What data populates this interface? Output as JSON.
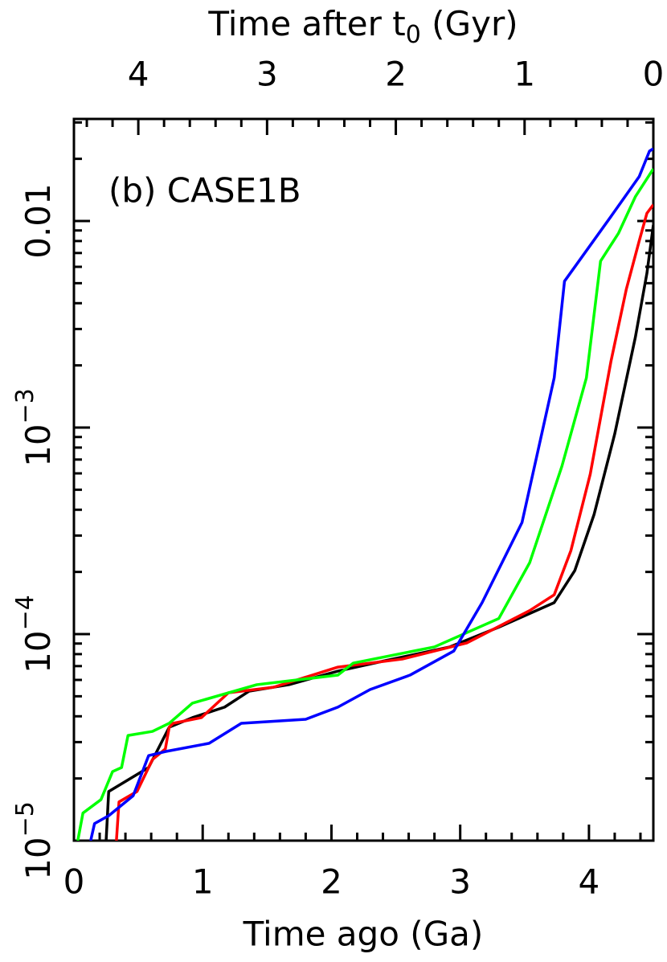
{
  "chart_data": {
    "type": "line",
    "annotation": "(b) CASE1B",
    "x_label": "Time ago (Ga)",
    "x2_label": [
      "Time after t",
      "0",
      " (Gyr)"
    ],
    "xlim": [
      0,
      4.5
    ],
    "xticks": [
      0,
      1,
      2,
      3,
      4
    ],
    "xminorticks": [
      0.2,
      0.4,
      0.6,
      0.8,
      1.2,
      1.4,
      1.6,
      1.8,
      2.2,
      2.4,
      2.6,
      2.8,
      3.2,
      3.4,
      3.6,
      3.8,
      4.2,
      4.4
    ],
    "x2lim": [
      4.5,
      0
    ],
    "x2ticks": [
      4,
      3,
      2,
      1,
      0
    ],
    "x2minorticks": [
      4.4,
      4.2,
      3.8,
      3.6,
      3.4,
      3.2,
      2.8,
      2.6,
      2.4,
      2.2,
      1.8,
      1.6,
      1.4,
      1.2,
      0.8,
      0.6,
      0.4,
      0.2
    ],
    "ylog": true,
    "ylim": [
      1e-05,
      0.0312
    ],
    "yticks": [
      {
        "value": 1e-05,
        "label": "10",
        "exponent": "−5"
      },
      {
        "value": 0.0001,
        "label": "10",
        "exponent": "−4"
      },
      {
        "value": 0.001,
        "label": "10",
        "exponent": "−3"
      },
      {
        "value": 0.01,
        "label": "0.01"
      }
    ],
    "yminorticks": [
      2e-05,
      3e-05,
      4e-05,
      5e-05,
      6e-05,
      7e-05,
      8e-05,
      9e-05,
      0.0002,
      0.0003,
      0.0004,
      0.0005,
      0.0006,
      0.0007,
      0.0008,
      0.0009,
      0.002,
      0.003,
      0.004,
      0.005,
      0.006,
      0.007,
      0.008,
      0.009,
      0.02,
      0.03
    ],
    "series": [
      {
        "color": "#000000",
        "x": [
          0.25,
          0.27,
          0.58,
          0.74,
          0.92,
          1.17,
          1.36,
          1.67,
          2.05,
          2.42,
          2.92,
          3.3,
          3.73,
          3.89,
          4.04,
          4.2,
          4.36,
          4.45,
          4.5
        ],
        "values": [
          1e-05,
          1.73e-05,
          2.26e-05,
          3.54e-05,
          3.94e-05,
          4.43e-05,
          5.29e-05,
          5.69e-05,
          6.62e-05,
          7.44e-05,
          8.67e-05,
          0.000108,
          0.000142,
          0.000203,
          0.00038,
          0.000931,
          0.00273,
          0.00558,
          0.00956
        ]
      },
      {
        "color": "#ff0000",
        "x": [
          0.33,
          0.35,
          0.49,
          0.61,
          0.71,
          0.74,
          0.77,
          0.99,
          1.2,
          1.55,
          2.05,
          2.55,
          3.05,
          3.54,
          3.73,
          3.86,
          4.01,
          4.17,
          4.29,
          4.39,
          4.45,
          4.5
        ],
        "values": [
          1e-05,
          1.54e-05,
          1.73e-05,
          2.47e-05,
          2.78e-05,
          3.54e-05,
          3.7e-05,
          3.94e-05,
          5.2e-05,
          5.53e-05,
          6.92e-05,
          7.57e-05,
          9.06e-05,
          0.00013,
          0.000155,
          0.000254,
          0.000595,
          0.00208,
          0.00467,
          0.008,
          0.0109,
          0.012
        ]
      },
      {
        "color": "#00ff00",
        "x": [
          0.03,
          0.07,
          0.21,
          0.3,
          0.37,
          0.42,
          0.61,
          0.74,
          0.92,
          1.42,
          2.05,
          2.17,
          2.8,
          3.3,
          3.54,
          3.79,
          3.98,
          4.09,
          4.23,
          4.36,
          4.5
        ],
        "values": [
          1e-05,
          1.36e-05,
          1.58e-05,
          2.16e-05,
          2.26e-05,
          3.23e-05,
          3.38e-05,
          3.7e-05,
          4.63e-05,
          5.69e-05,
          6.33e-05,
          7.24e-05,
          8.67e-05,
          0.000119,
          0.000222,
          0.00065,
          0.00174,
          0.00639,
          0.00874,
          0.0131,
          0.0179
        ]
      },
      {
        "color": "#0000ff",
        "x": [
          0.13,
          0.16,
          0.27,
          0.46,
          0.58,
          0.71,
          1.05,
          1.3,
          1.8,
          2.05,
          2.3,
          2.61,
          2.95,
          3.17,
          3.48,
          3.73,
          3.81,
          4.17,
          4.39,
          4.47,
          4.5
        ],
        "values": [
          1e-05,
          1.21e-05,
          1.32e-05,
          1.65e-05,
          2.58e-05,
          2.7e-05,
          2.96e-05,
          3.7e-05,
          3.87e-05,
          4.43e-05,
          5.39e-05,
          6.33e-05,
          8.28e-05,
          0.000142,
          0.000347,
          0.00174,
          0.00511,
          0.0105,
          0.0164,
          0.0218,
          0.0224
        ]
      }
    ]
  }
}
